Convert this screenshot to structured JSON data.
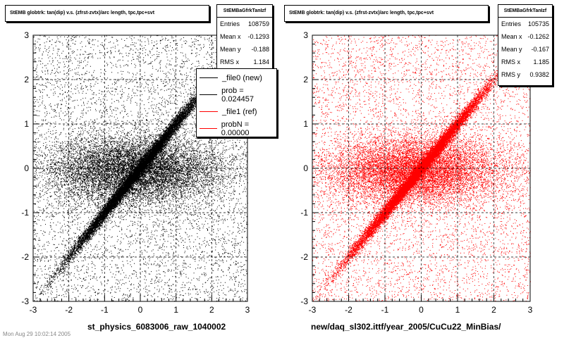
{
  "chart_data": [
    {
      "type": "scatter",
      "title": "StEMB globtrk: tan(dip) v.s. (zfrst-zvtx)/arc length, tpc,tpc+svt",
      "xlabel": "st_physics_6083006_raw_1040002",
      "ylabel": "",
      "xlim": [
        -3,
        3
      ],
      "ylim": [
        -3,
        3
      ],
      "xticks": [
        "-3",
        "-2",
        "-1",
        "0",
        "1",
        "2",
        "3"
      ],
      "yticks": [
        "-3",
        "-2",
        "-1",
        "0",
        "1",
        "2",
        "3"
      ],
      "grid": true,
      "marker_color": "#000000",
      "stats": {
        "name": "StEMBaGfrkTanIzf",
        "rows": [
          {
            "label": "Entries",
            "value": "108759"
          },
          {
            "label": "Mean x",
            "value": "-0.1293"
          },
          {
            "label": "Mean y",
            "value": "-0.188"
          },
          {
            "label": "RMS x",
            "value": "1.184"
          }
        ]
      },
      "legend": {
        "placement": "top-right",
        "entries": [
          {
            "label": "_file0 (new)",
            "color": "#000000"
          },
          {
            "label": "prob = 0.024457",
            "color": "#000000"
          },
          {
            "label": "_file1 (ref)",
            "color": "#ff0000"
          },
          {
            "label": "probN = 0.00000",
            "color": "#ff0000"
          }
        ]
      },
      "footer": "Mon Aug 29 10:02:14 2005"
    },
    {
      "type": "scatter",
      "title": "StEMB globtrk: tan(dip) v.s. (zfrst-zvtx)/arc length, tpc,tpc+svt",
      "xlabel": "new/daq_sl302.ittf/year_2005/CuCu22_MinBias/",
      "ylabel": "",
      "xlim": [
        -3,
        3
      ],
      "ylim": [
        -3,
        3
      ],
      "xticks": [
        "-3",
        "-2",
        "-1",
        "0",
        "1",
        "2",
        "3"
      ],
      "yticks": [
        "-3",
        "-2",
        "-1",
        "0",
        "1",
        "2",
        "3"
      ],
      "grid": true,
      "marker_color": "#ff0000",
      "stats": {
        "name": "StEMBaGfrkTanIzf",
        "rows": [
          {
            "label": "Entries",
            "value": "105735"
          },
          {
            "label": "Mean x",
            "value": "-0.1262"
          },
          {
            "label": "Mean y",
            "value": "-0.167"
          },
          {
            "label": "RMS x",
            "value": "1.185"
          },
          {
            "label": "RMS y",
            "value": "0.9382"
          }
        ]
      }
    }
  ]
}
